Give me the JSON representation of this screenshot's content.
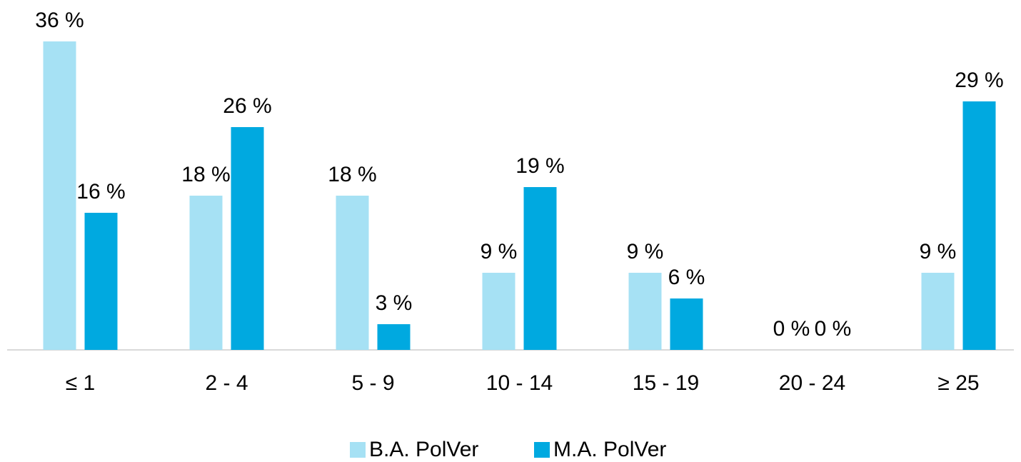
{
  "chart_data": {
    "type": "bar",
    "categories": [
      "≤ 1",
      "2 - 4",
      "5 - 9",
      "10 - 14",
      "15 - 19",
      "20 - 24",
      "≥ 25"
    ],
    "series": [
      {
        "name": "B.A. PolVer",
        "color": "#a6e1f4",
        "values": [
          36,
          18,
          18,
          9,
          9,
          0,
          9
        ],
        "value_labels": [
          "36 %",
          "18 %",
          "18 %",
          "9 %",
          "9 %",
          "0 %",
          "9 %"
        ]
      },
      {
        "name": "M.A. PolVer",
        "color": "#00a9e0",
        "values": [
          16,
          26,
          3,
          19,
          6,
          0,
          29
        ],
        "value_labels": [
          "16 %",
          "26 %",
          "3 %",
          "19 %",
          "6 %",
          "0 %",
          "29 %"
        ]
      }
    ],
    "ylim": [
      0,
      36
    ],
    "legend": "bottom"
  }
}
